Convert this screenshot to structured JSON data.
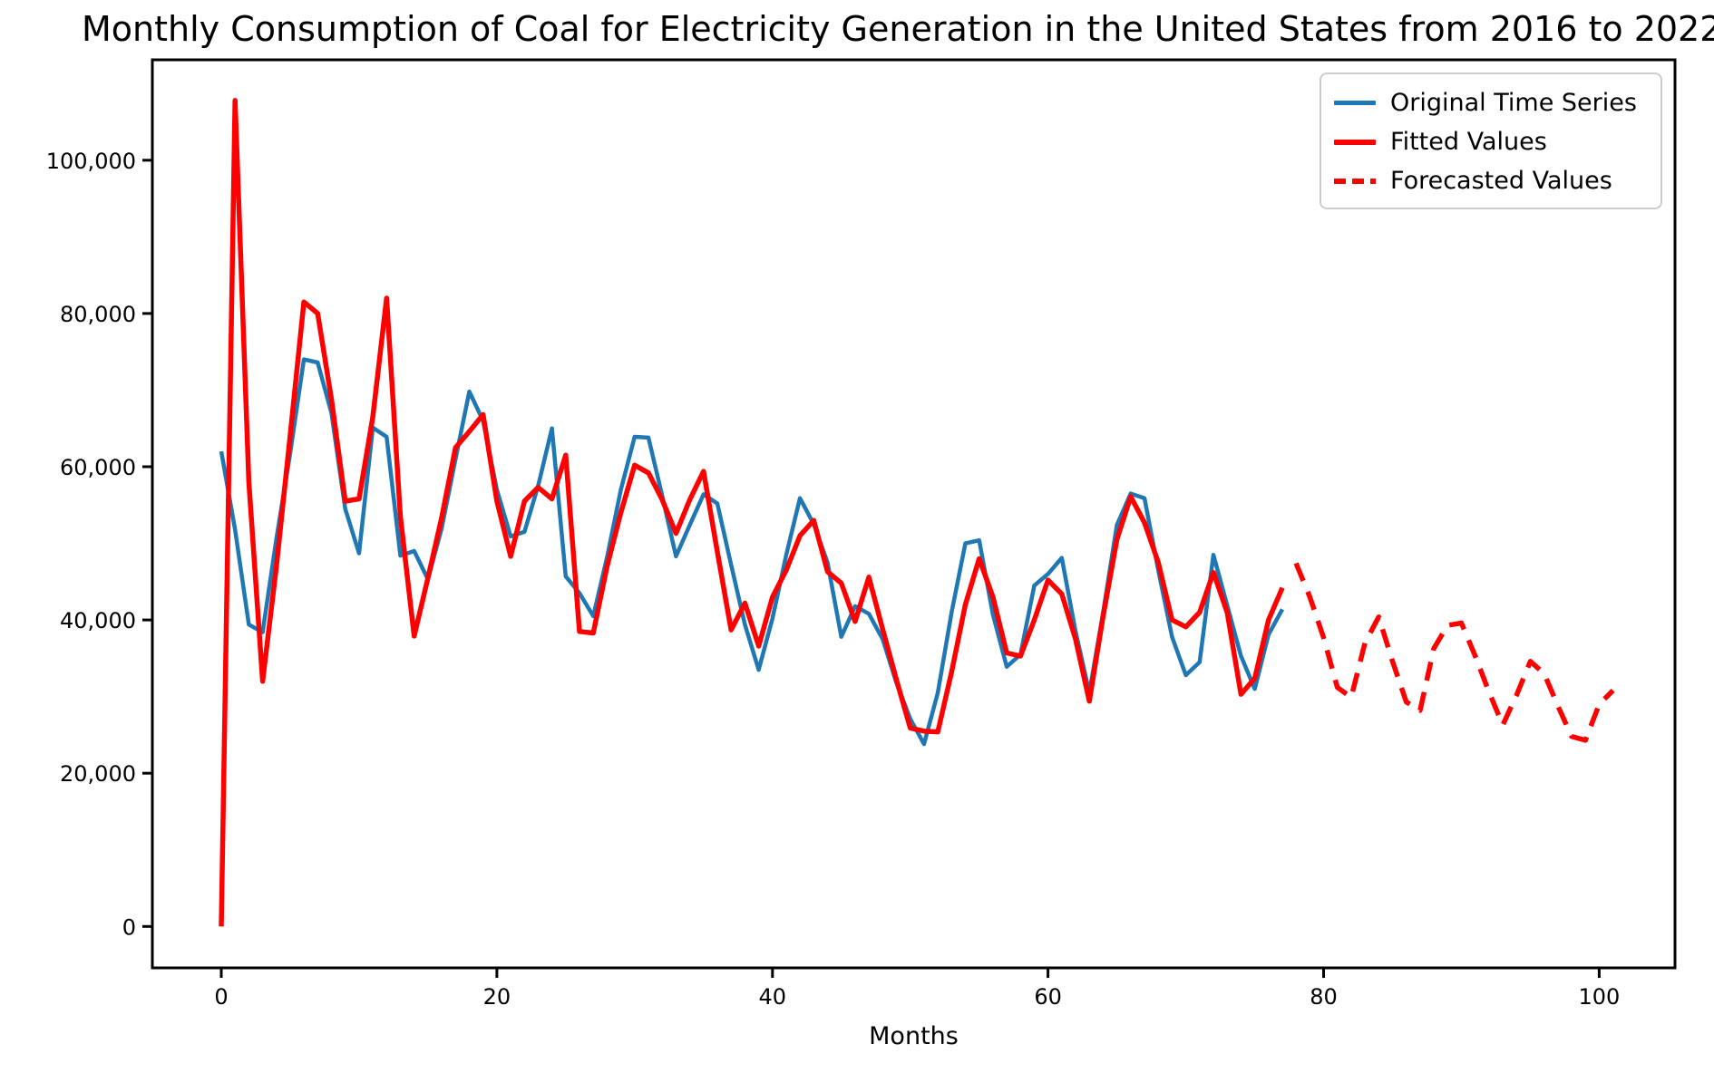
{
  "figure": {
    "background": "#ffffff"
  },
  "chart_data": {
    "type": "line",
    "title": "Monthly Consumption of Coal for Electricity Generation in the United States from 2016 to 2022",
    "xlabel": "Months",
    "ylabel": "",
    "grid": false,
    "legend_position": "upper right",
    "xlim": [
      -5.0,
      105.5
    ],
    "ylim": [
      -5400,
      113100
    ],
    "xticks": {
      "values": [
        0,
        20,
        40,
        60,
        80,
        100
      ],
      "labels": [
        "0",
        "20",
        "40",
        "60",
        "80",
        "100"
      ]
    },
    "yticks": {
      "values": [
        0,
        20000,
        40000,
        60000,
        80000,
        100000
      ],
      "labels": [
        "0",
        "20,000",
        "40,000",
        "60,000",
        "80,000",
        "100,000"
      ]
    },
    "axis_color": "#000000",
    "series": [
      {
        "name": "Original Time Series",
        "color": "#1f77b4",
        "style": "solid",
        "width": 4.5,
        "x": [
          0,
          1,
          2,
          3,
          4,
          5,
          6,
          7,
          8,
          9,
          10,
          11,
          12,
          13,
          14,
          15,
          16,
          17,
          18,
          19,
          20,
          21,
          22,
          23,
          24,
          25,
          26,
          27,
          28,
          29,
          30,
          31,
          32,
          33,
          34,
          35,
          36,
          37,
          38,
          39,
          40,
          41,
          42,
          43,
          44,
          45,
          46,
          47,
          48,
          49,
          50,
          51,
          52,
          53,
          54,
          55,
          56,
          57,
          58,
          59,
          60,
          61,
          62,
          63,
          64,
          65,
          66,
          67,
          68,
          69,
          70,
          71,
          72,
          73,
          74,
          75,
          76,
          77
        ],
        "values": [
          62000,
          51800,
          39400,
          38400,
          50600,
          61700,
          74000,
          73600,
          67000,
          54500,
          48700,
          65100,
          63900,
          48400,
          49000,
          45300,
          52000,
          61000,
          69800,
          66000,
          57000,
          50900,
          51500,
          57500,
          65000,
          45700,
          43500,
          40500,
          48200,
          57000,
          63900,
          63800,
          56200,
          48300,
          52400,
          56400,
          55200,
          47200,
          39400,
          33500,
          40200,
          48500,
          55900,
          52500,
          47500,
          37800,
          41800,
          40800,
          37500,
          31800,
          27100,
          23800,
          30500,
          41000,
          50000,
          50400,
          40700,
          33900,
          35500,
          44500,
          46000,
          48100,
          38500,
          30500,
          41000,
          52400,
          56500,
          55900,
          46500,
          37800,
          32800,
          34500,
          48500,
          41900,
          35300,
          31000,
          38100,
          41400
        ]
      },
      {
        "name": "Fitted Values",
        "color": "#fe0000",
        "style": "solid",
        "width": 5.5,
        "x": [
          0,
          1,
          2,
          3,
          4,
          5,
          6,
          7,
          8,
          9,
          10,
          11,
          12,
          13,
          14,
          15,
          16,
          17,
          18,
          19,
          20,
          21,
          22,
          23,
          24,
          25,
          26,
          27,
          28,
          29,
          30,
          31,
          32,
          33,
          34,
          35,
          36,
          37,
          38,
          39,
          40,
          41,
          42,
          43,
          44,
          45,
          46,
          47,
          48,
          49,
          50,
          51,
          52,
          53,
          54,
          55,
          56,
          57,
          58,
          59,
          60,
          61,
          62,
          63,
          64,
          65,
          66,
          67,
          68,
          69,
          70,
          71,
          72,
          73,
          74,
          75,
          76,
          77
        ],
        "values": [
          0,
          107800,
          58000,
          32000,
          47000,
          64000,
          81500,
          80000,
          68800,
          55500,
          55800,
          66500,
          82000,
          53500,
          37900,
          45500,
          53400,
          62500,
          64600,
          66800,
          55500,
          48300,
          55500,
          57300,
          55800,
          61500,
          38500,
          38300,
          47000,
          54000,
          60200,
          59200,
          55700,
          51300,
          55700,
          59400,
          48900,
          38700,
          42200,
          36600,
          43000,
          46500,
          51000,
          53000,
          46300,
          44800,
          39800,
          45600,
          38800,
          32200,
          25900,
          25500,
          25400,
          33200,
          42000,
          48000,
          43000,
          35700,
          35300,
          40000,
          45200,
          43400,
          37500,
          29400,
          40500,
          50500,
          56100,
          52700,
          47500,
          40000,
          39100,
          41000,
          46200,
          41000,
          30300,
          32400,
          40000,
          44200
        ]
      },
      {
        "name": "Forecasted Values",
        "color": "#fe0000",
        "style": "dashed",
        "width": 5.5,
        "x": [
          78,
          79,
          80,
          81,
          82,
          83,
          84,
          85,
          86,
          87,
          88,
          89,
          90,
          91,
          92,
          93,
          94,
          95,
          96,
          97,
          98,
          99,
          100,
          101
        ],
        "values": [
          47400,
          43000,
          37700,
          31200,
          29900,
          37000,
          40400,
          34600,
          29300,
          28200,
          36300,
          39300,
          39600,
          35300,
          30600,
          26300,
          30200,
          34600,
          33000,
          28800,
          24800,
          24300,
          29000,
          30800
        ]
      }
    ]
  }
}
